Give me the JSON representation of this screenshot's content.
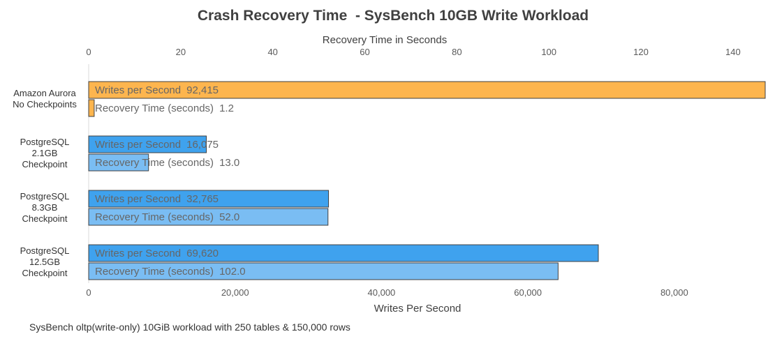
{
  "chart_data": {
    "type": "bar",
    "orientation": "horizontal",
    "title": "Crash Recovery Time  - SysBench 10GB Write Workload",
    "top_axis": {
      "label": "Recovery Time in Seconds",
      "ticks": [
        "0",
        "20",
        "40",
        "60",
        "80",
        "100",
        "120",
        "140"
      ],
      "range": [
        0,
        147
      ]
    },
    "bottom_axis": {
      "label": "Writes Per Second",
      "ticks": [
        "0",
        "20,000",
        "40,000",
        "60,000",
        "80,000"
      ],
      "range": [
        0,
        92415
      ]
    },
    "categories": [
      {
        "lines": [
          "Amazon Aurora",
          "No Checkpoints"
        ]
      },
      {
        "lines": [
          "PostgreSQL",
          "2.1GB",
          "Checkpoint"
        ]
      },
      {
        "lines": [
          "PostgreSQL",
          "8.3GB",
          "Checkpoint"
        ]
      },
      {
        "lines": [
          "PostgreSQL",
          "12.5GB",
          "Checkpoint"
        ]
      }
    ],
    "series": [
      {
        "name": "Writes per Second",
        "axis": "bottom",
        "values": [
          92415,
          16075,
          32765,
          69620
        ],
        "value_labels": [
          "92,415",
          "16,075",
          "32,765",
          "69,620"
        ]
      },
      {
        "name": "Recovery Time (seconds)",
        "axis": "top",
        "values": [
          1.2,
          13.0,
          52.0,
          102.0
        ],
        "value_labels": [
          "1.2",
          "13.0",
          "52.0",
          "102.0"
        ]
      }
    ],
    "colors": {
      "aurora": "#FDB54E",
      "writes": "#3FA2EE",
      "recovery": "#7ABDF3",
      "outline": "#404040"
    }
  },
  "footnote": "SysBench oltp(write-only) 10GiB workload with 250 tables & 150,000 rows"
}
